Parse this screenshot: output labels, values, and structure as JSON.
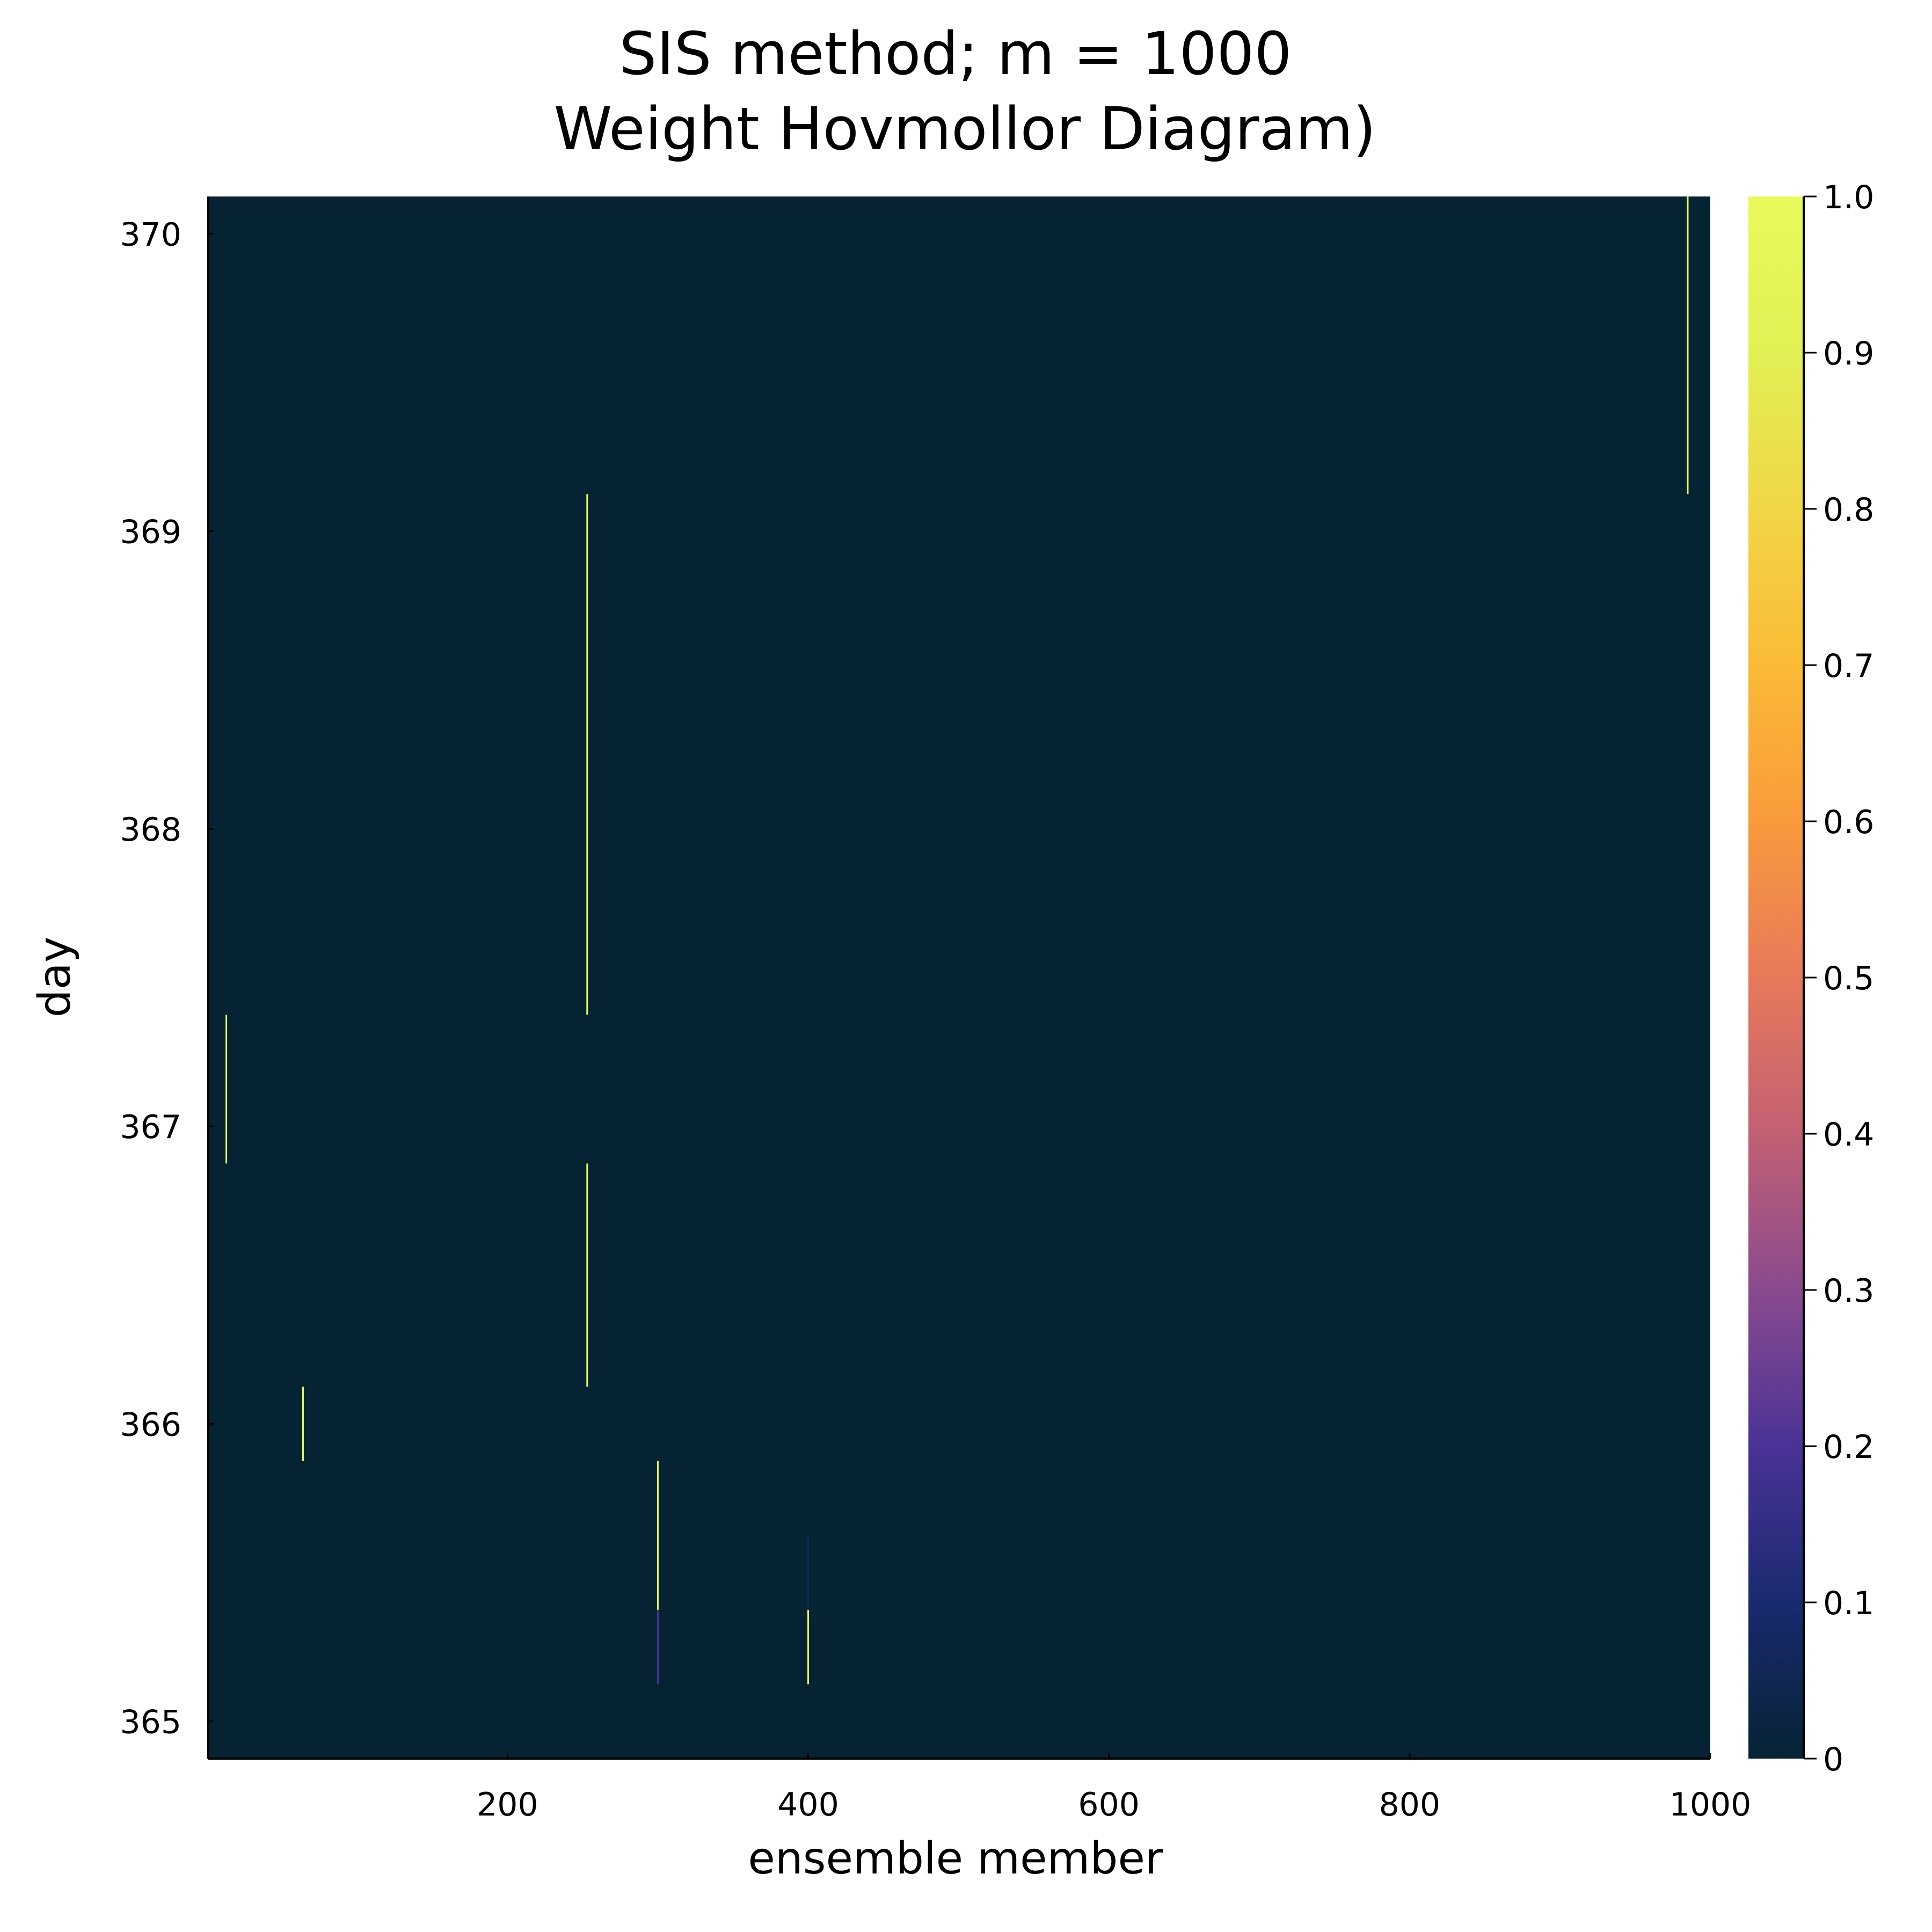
{
  "chart_data": {
    "type": "heatmap",
    "title": "SIS method; m = 1000",
    "subtitle": " Weight Hovmollor Diagram)",
    "xlabel": "ensemble member",
    "ylabel": "day",
    "xlim": [
      1,
      1000
    ],
    "ylim": [
      364.875,
      370.125
    ],
    "x_ticks": [
      200,
      400,
      600,
      800,
      1000
    ],
    "y_ticks": [
      365,
      366,
      367,
      368,
      369,
      370
    ],
    "background_color": "#062334",
    "colorbar": {
      "range": [
        0,
        1
      ],
      "ticks": [
        "0",
        "0.1",
        "0.2",
        "0.3",
        "0.4",
        "0.5",
        "0.6",
        "0.7",
        "0.8",
        "0.9",
        "1.0"
      ],
      "colormap": [
        "#062334",
        "#1a2a70",
        "#4a3296",
        "#8a4a8e",
        "#c26074",
        "#e8795a",
        "#f99a3c",
        "#fbbb36",
        "#f1d645",
        "#e1f054",
        "#e8fa5b"
      ]
    },
    "cells": [
      {
        "member": 985,
        "day_start": 369.125,
        "day_end": 370.125,
        "weight": 1.0
      },
      {
        "member": 253,
        "day_start": 367.375,
        "day_end": 369.125,
        "weight": 1.0
      },
      {
        "member": 13,
        "day_start": 366.875,
        "day_end": 367.375,
        "weight": 1.0
      },
      {
        "member": 253,
        "day_start": 366.125,
        "day_end": 366.875,
        "weight": 1.0
      },
      {
        "member": 64,
        "day_start": 365.875,
        "day_end": 366.125,
        "weight": 1.0
      },
      {
        "member": 300,
        "day_start": 365.375,
        "day_end": 365.875,
        "weight": 1.0
      },
      {
        "member": 400,
        "day_start": 365.375,
        "day_end": 365.625,
        "weight": 0.05
      },
      {
        "member": 300,
        "day_start": 365.125,
        "day_end": 365.375,
        "weight": 0.2
      },
      {
        "member": 400,
        "day_start": 365.125,
        "day_end": 365.375,
        "weight": 1.0
      }
    ]
  }
}
